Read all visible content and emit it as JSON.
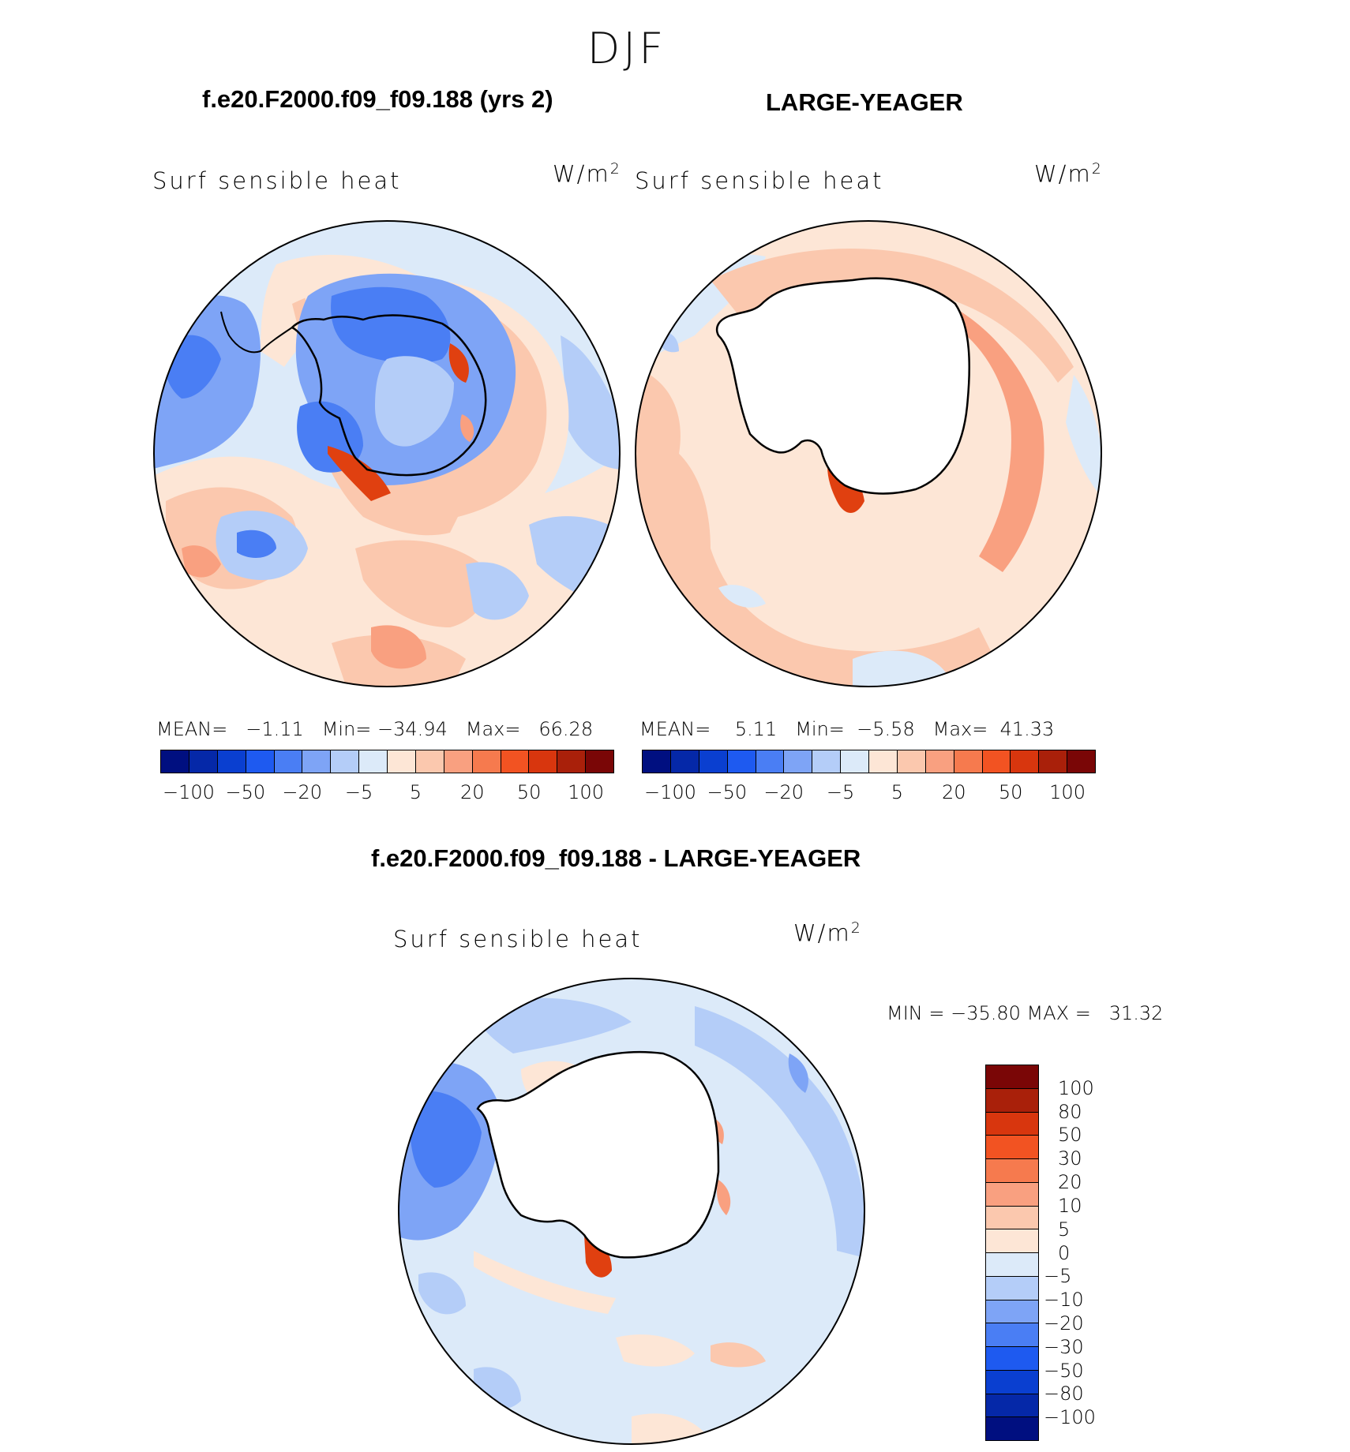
{
  "title": "DJF",
  "panels": {
    "model": {
      "title": "f.e20.F2000.f09_f09.188 (yrs 2)",
      "variable": "Surf sensible heat",
      "units": "W/m",
      "units_exp": "2",
      "mean_label": "MEAN=",
      "mean": "−1.11",
      "min_label": "Min=",
      "min": "−34.94",
      "max_label": "Max=",
      "max": "66.28"
    },
    "obs": {
      "title": "LARGE-YEAGER",
      "variable": "Surf sensible heat",
      "units": "W/m",
      "units_exp": "2",
      "mean_label": "MEAN=",
      "mean": "5.11",
      "min_label": "Min=",
      "min": "−5.58",
      "max_label": "Max=",
      "max": "41.33"
    },
    "diff": {
      "title": "f.e20.F2000.f09_f09.188 - LARGE-YEAGER",
      "variable": "Surf sensible heat",
      "units": "W/m",
      "units_exp": "2",
      "minmax": "MIN = −35.80 MAX =   31.32"
    }
  },
  "colorbar_top": {
    "colors": [
      "#000f80",
      "#0528a8",
      "#0a3fd0",
      "#1e5af0",
      "#4a7ef4",
      "#7ea4f6",
      "#b4cdf8",
      "#dceaf9",
      "#fde6d6",
      "#fbc8ae",
      "#f9a080",
      "#f67a4e",
      "#f25322",
      "#d8360e",
      "#a9200a",
      "#7a0606"
    ],
    "ticks": [
      "−100",
      "−50",
      "−20",
      "−5",
      "5",
      "20",
      "50",
      "100"
    ]
  },
  "colorbar_diff": {
    "colors": [
      "#7a0606",
      "#a9200a",
      "#d8360e",
      "#f25322",
      "#f67a4e",
      "#f9a080",
      "#fbc8ae",
      "#fde6d6",
      "#dceaf9",
      "#b4cdf8",
      "#7ea4f6",
      "#4a7ef4",
      "#1e5af0",
      "#0a3fd0",
      "#0528a8",
      "#000f80"
    ],
    "ticks": [
      "100",
      "80",
      "50",
      "30",
      "20",
      "10",
      "5",
      "0",
      "−5",
      "−10",
      "−20",
      "−30",
      "−50",
      "−80",
      "−100"
    ]
  },
  "palette": {
    "blue_dark": "#4a7ef4",
    "blue_mid": "#7ea4f6",
    "blue_light": "#b4cdf8",
    "blue_pale": "#dceaf9",
    "red_pale": "#fde6d6",
    "red_light": "#fbc8ae",
    "red_mid": "#f9a080",
    "red_dark": "#f67a4e",
    "red_deep": "#e04010"
  }
}
